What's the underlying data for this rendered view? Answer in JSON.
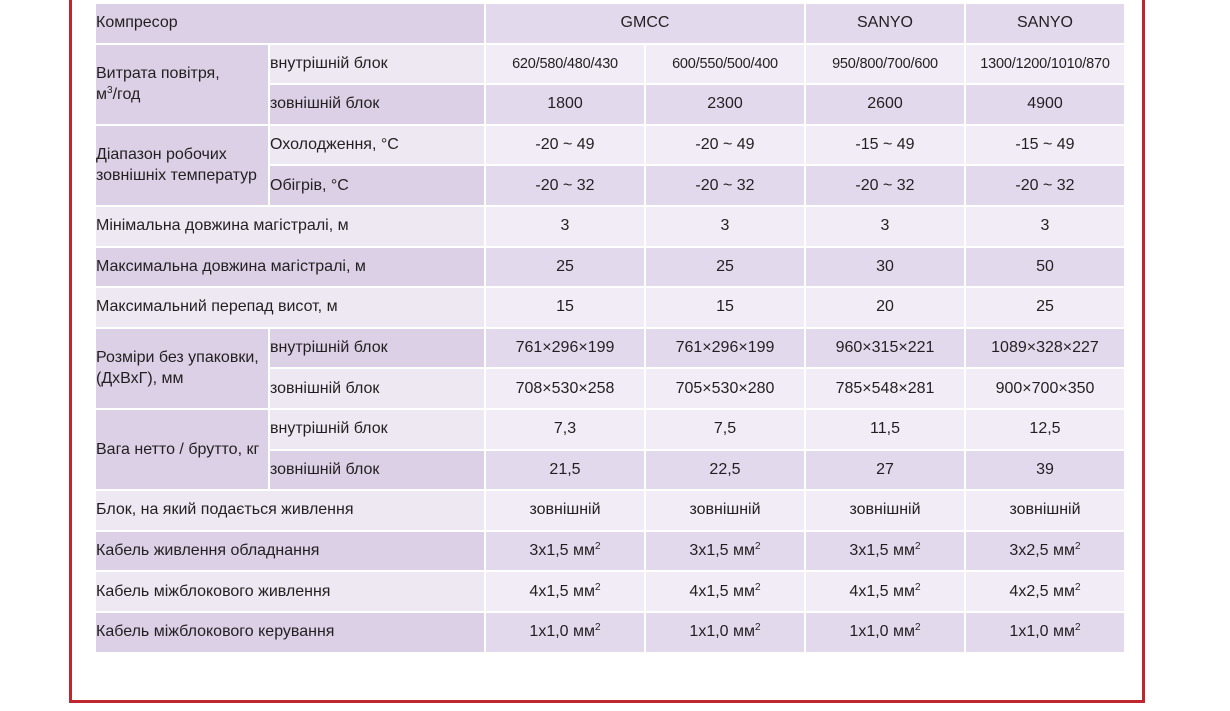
{
  "rows": {
    "compressor": {
      "label": "Компресор",
      "v1": "GMCC",
      "v3": "SANYO",
      "v4": "SANYO"
    },
    "airflow": {
      "label": "Витрата повітря,",
      "unit_base": "м",
      "unit_sup": "3",
      "unit_tail": "/год",
      "indoor": {
        "label": "внутрішній блок",
        "v1": "620/580/480/430",
        "v2": "600/550/500/400",
        "v3": "950/800/700/600",
        "v4": "1300/1200/1010/870"
      },
      "outdoor": {
        "label": "зовнішній блок",
        "v1": "1800",
        "v2": "2300",
        "v3": "2600",
        "v4": "4900"
      }
    },
    "temp_range": {
      "label": "Діапазон робочих зовнішніх температур",
      "cooling": {
        "label": "Охолодження, °С",
        "v1": "-20 ~ 49",
        "v2": "-20 ~ 49",
        "v3": "-15 ~ 49",
        "v4": "-15 ~ 49"
      },
      "heating": {
        "label": "Обігрів, °С",
        "v1": "-20 ~ 32",
        "v2": "-20 ~ 32",
        "v3": "-20 ~ 32",
        "v4": "-20 ~ 32"
      }
    },
    "min_pipe": {
      "label": "Мінімальна довжина магістралі, м",
      "v1": "3",
      "v2": "3",
      "v3": "3",
      "v4": "3"
    },
    "max_pipe": {
      "label": "Максимальна довжина магістралі, м",
      "v1": "25",
      "v2": "25",
      "v3": "30",
      "v4": "50"
    },
    "max_height": {
      "label": "Максимальний перепад висот, м",
      "v1": "15",
      "v2": "15",
      "v3": "20",
      "v4": "25"
    },
    "dimensions": {
      "label": "Розміри без упаковки, (ДхВхГ), мм",
      "indoor": {
        "label": "внутрішній блок",
        "v1": "761×296×199",
        "v2": "761×296×199",
        "v3": "960×315×221",
        "v4": "1089×328×227"
      },
      "outdoor": {
        "label": "зовнішній блок",
        "v1": "708×530×258",
        "v2": "705×530×280",
        "v3": "785×548×281",
        "v4": "900×700×350"
      }
    },
    "weight": {
      "label": "Вага нетто / брутто, кг",
      "indoor": {
        "label": "внутрішній блок",
        "v1": "7,3",
        "v2": "7,5",
        "v3": "11,5",
        "v4": "12,5"
      },
      "outdoor": {
        "label": "зовнішній блок",
        "v1": "21,5",
        "v2": "22,5",
        "v3": "27",
        "v4": "39"
      }
    },
    "power_block": {
      "label": "Блок, на який подається живлення",
      "v1": "зовнішній",
      "v2": "зовнішній",
      "v3": "зовнішній",
      "v4": "зовнішній"
    },
    "power_cable": {
      "label": "Кабель живлення обладнання",
      "unit_sup": "2",
      "v1": "3х1,5 мм",
      "v2": "3х1,5 мм",
      "v3": "3х1,5 мм",
      "v4": "3х2,5 мм"
    },
    "interunit_power": {
      "label": "Кабель міжблокового живлення",
      "unit_sup": "2",
      "v1": "4х1,5 мм",
      "v2": "4х1,5 мм",
      "v3": "4х1,5 мм",
      "v4": "4х2,5 мм"
    },
    "interunit_control": {
      "label": "Кабель міжблокового керування",
      "unit_sup": "2",
      "v1": "1х1,0 мм",
      "v2": "1х1,0 мм",
      "v3": "1х1,0 мм",
      "v4": "1х1,0 мм"
    }
  },
  "colors": {
    "frame_border": "#c0262d",
    "row_dark": "#dcd0e6",
    "row_light": "#f1ecf6"
  }
}
